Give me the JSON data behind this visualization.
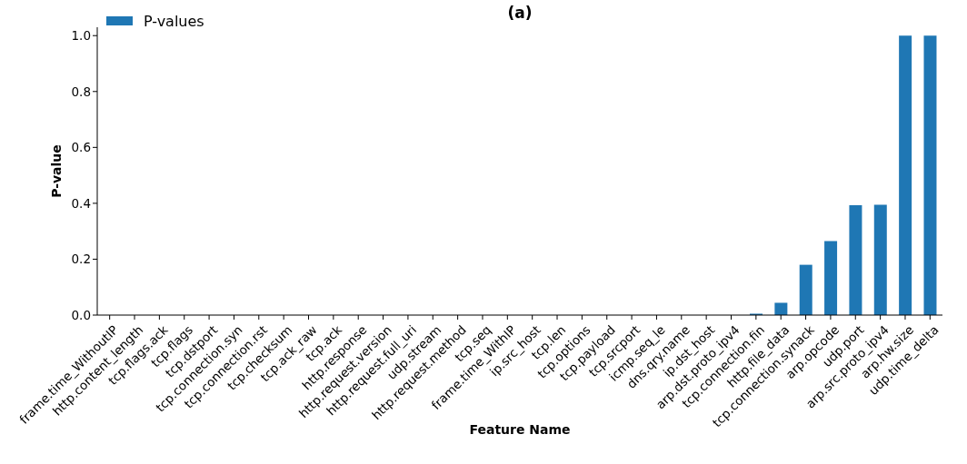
{
  "chart_data": {
    "type": "bar",
    "title": "(a)",
    "xlabel": "Feature Name",
    "ylabel": "P-value",
    "categories": [
      "frame.time_WithoutIP",
      "http.content_length",
      "tcp.flags.ack",
      "tcp.flags",
      "tcp.dstport",
      "tcp.connection.syn",
      "tcp.connection.rst",
      "tcp.checksum",
      "tcp.ack_raw",
      "tcp.ack",
      "http.response",
      "http.request.version",
      "http.request.full_uri",
      "udp.stream",
      "http.request.method",
      "tcp.seq",
      "frame.time_WithIP",
      "ip.src_host",
      "tcp.len",
      "tcp.options",
      "tcp.payload",
      "tcp.srcport",
      "icmp.seq_le",
      "dns.qry.name",
      "ip.dst_host",
      "arp.dst.proto_ipv4",
      "tcp.connection.fin",
      "http.file_data",
      "tcp.connection.synack",
      "arp.opcode",
      "udp.port",
      "arp.src.proto_ipv4",
      "arp.hw.size",
      "udp.time_delta"
    ],
    "series": [
      {
        "name": "P-values",
        "color": "#1f77b4",
        "values": [
          0,
          0,
          0,
          0,
          0,
          0,
          0,
          0,
          0,
          0,
          0,
          0,
          0,
          0,
          0,
          0,
          0,
          0,
          0,
          0,
          0,
          0,
          0,
          0,
          0,
          0,
          0.005,
          0.044,
          0.18,
          0.265,
          0.393,
          0.395,
          1.0,
          1.0
        ]
      }
    ],
    "ylim": [
      0,
      1.03
    ],
    "yticks": [
      {
        "value": 0,
        "label": "0.0"
      },
      {
        "value": 0.2,
        "label": "0.2"
      },
      {
        "value": 0.4,
        "label": "0.4"
      },
      {
        "value": 0.6,
        "label": "0.6"
      },
      {
        "value": 0.8,
        "label": "0.8"
      },
      {
        "value": 1,
        "label": "1.0"
      }
    ],
    "legend": "top left"
  }
}
